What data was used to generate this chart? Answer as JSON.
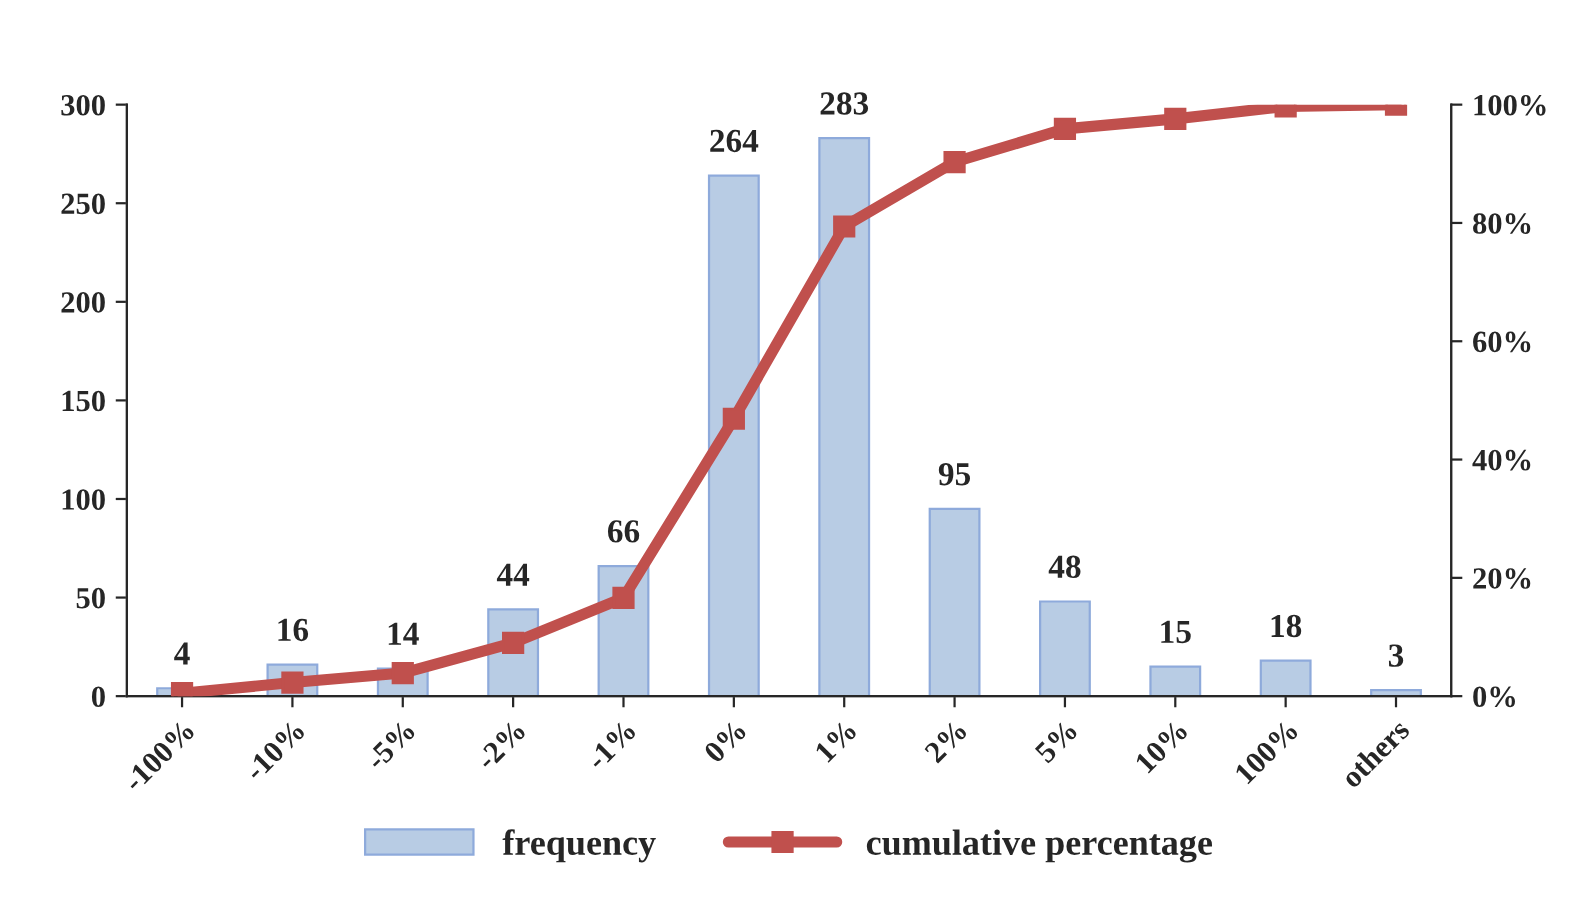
{
  "chart_data": {
    "type": "bar",
    "categories": [
      "-100%",
      "-10%",
      "-5%",
      "-2%",
      "-1%",
      "0%",
      "1%",
      "2%",
      "5%",
      "10%",
      "100%",
      "others"
    ],
    "series": [
      {
        "name": "frequency",
        "color": "#b8cce4",
        "values": [
          4,
          16,
          14,
          44,
          66,
          264,
          283,
          95,
          48,
          15,
          18,
          3
        ],
        "value_labels": [
          "4",
          "16",
          "14",
          "44",
          "66",
          "264",
          "283",
          "95",
          "48",
          "15",
          "18",
          "3"
        ]
      },
      {
        "name": "cumulative percentage",
        "type": "line",
        "axis": "y2",
        "color": "#c0504d",
        "marker": "square",
        "values": [
          0.5,
          2.3,
          3.9,
          9.0,
          16.6,
          46.9,
          79.4,
          90.3,
          95.9,
          97.6,
          99.7,
          100
        ]
      }
    ],
    "ylim": [
      0,
      300
    ],
    "yticks": [
      0,
      50,
      100,
      150,
      200,
      250,
      300
    ],
    "y2lim": [
      0,
      100
    ],
    "y2ticks": [
      {
        "value": 0,
        "label": "0%"
      },
      {
        "value": 20,
        "label": "20%"
      },
      {
        "value": 40,
        "label": "40%"
      },
      {
        "value": 60,
        "label": "60%"
      },
      {
        "value": 80,
        "label": "80%"
      },
      {
        "value": 100,
        "label": "100%"
      }
    ],
    "legend": "bottom",
    "grid": false
  }
}
